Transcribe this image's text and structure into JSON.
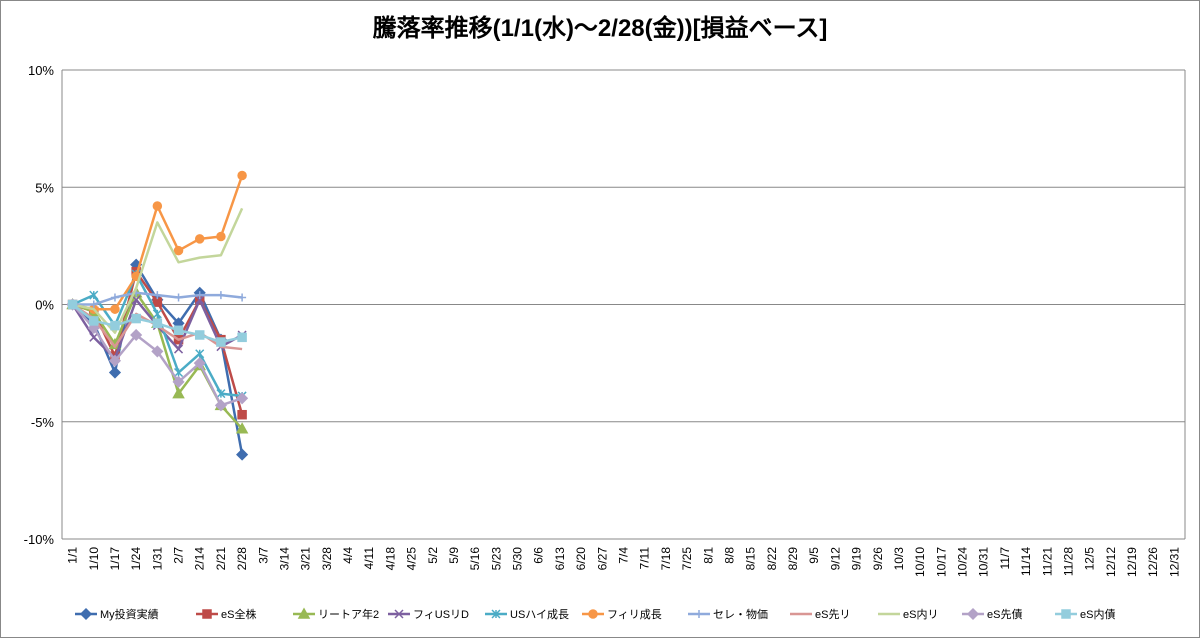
{
  "chart_data": {
    "type": "line",
    "title": "騰落率推移(1/1(水)～2/28(金))[損益ベース]",
    "categories": [
      "1/1",
      "1/10",
      "1/17",
      "1/24",
      "1/31",
      "2/7",
      "2/14",
      "2/21",
      "2/28",
      "3/7",
      "3/14",
      "3/21",
      "3/28",
      "4/4",
      "4/11",
      "4/18",
      "4/25",
      "5/2",
      "5/9",
      "5/16",
      "5/23",
      "5/30",
      "6/6",
      "6/13",
      "6/20",
      "6/27",
      "7/4",
      "7/11",
      "7/18",
      "7/25",
      "8/1",
      "8/8",
      "8/15",
      "8/22",
      "8/29",
      "9/5",
      "9/12",
      "9/19",
      "9/26",
      "10/3",
      "10/10",
      "10/17",
      "10/24",
      "10/31",
      "11/7",
      "11/14",
      "11/21",
      "11/28",
      "12/5",
      "12/12",
      "12/19",
      "12/26",
      "12/31"
    ],
    "ylim": [
      -10,
      10
    ],
    "yticks": [
      {
        "value": -10,
        "label": "-10%"
      },
      {
        "value": -5,
        "label": "-5%"
      },
      {
        "value": 0,
        "label": "0%"
      },
      {
        "value": 5,
        "label": "5%"
      },
      {
        "value": 10,
        "label": "10%"
      }
    ],
    "grid": true,
    "legend": "bottom",
    "series": [
      {
        "name": "My投資実績",
        "color": "#3f6daf",
        "marker": "diamond",
        "values": [
          0,
          -0.8,
          -2.9,
          1.7,
          0.2,
          -0.8,
          0.5,
          -1.5,
          -6.4,
          null,
          null,
          null,
          null,
          null,
          null,
          null,
          null,
          null,
          null,
          null,
          null,
          null,
          null,
          null,
          null,
          null,
          null,
          null,
          null,
          null,
          null,
          null,
          null,
          null,
          null,
          null,
          null,
          null,
          null,
          null,
          null,
          null,
          null,
          null,
          null,
          null,
          null,
          null,
          null,
          null,
          null,
          null,
          null
        ]
      },
      {
        "name": "eS全株",
        "color": "#be4b48",
        "marker": "square",
        "values": [
          0,
          -0.3,
          -2.2,
          1.4,
          0.1,
          -1.5,
          0.2,
          -1.5,
          -4.7,
          null,
          null,
          null,
          null,
          null,
          null,
          null,
          null,
          null,
          null,
          null,
          null,
          null,
          null,
          null,
          null,
          null,
          null,
          null,
          null,
          null,
          null,
          null,
          null,
          null,
          null,
          null,
          null,
          null,
          null,
          null,
          null,
          null,
          null,
          null,
          null,
          null,
          null,
          null,
          null,
          null,
          null,
          null,
          null
        ]
      },
      {
        "name": "リートア年2",
        "color": "#98b954",
        "marker": "triangle",
        "values": [
          0,
          -0.3,
          -1.7,
          0.5,
          -0.8,
          -3.8,
          -2.6,
          -4.3,
          -5.3,
          null,
          null,
          null,
          null,
          null,
          null,
          null,
          null,
          null,
          null,
          null,
          null,
          null,
          null,
          null,
          null,
          null,
          null,
          null,
          null,
          null,
          null,
          null,
          null,
          null,
          null,
          null,
          null,
          null,
          null,
          null,
          null,
          null,
          null,
          null,
          null,
          null,
          null,
          null,
          null,
          null,
          null,
          null,
          null
        ]
      },
      {
        "name": "フィUSリD",
        "color": "#7d60a0",
        "marker": "x",
        "values": [
          0,
          -1.4,
          -2.3,
          0.2,
          -0.9,
          -1.9,
          0.2,
          -1.8,
          -1.3,
          null,
          null,
          null,
          null,
          null,
          null,
          null,
          null,
          null,
          null,
          null,
          null,
          null,
          null,
          null,
          null,
          null,
          null,
          null,
          null,
          null,
          null,
          null,
          null,
          null,
          null,
          null,
          null,
          null,
          null,
          null,
          null,
          null,
          null,
          null,
          null,
          null,
          null,
          null,
          null,
          null,
          null,
          null,
          null
        ]
      },
      {
        "name": "USハイ成長",
        "color": "#4bacc6",
        "marker": "asterisk",
        "values": [
          0,
          0.4,
          -0.9,
          1.3,
          -0.4,
          -2.9,
          -2.1,
          -3.8,
          -3.9,
          null,
          null,
          null,
          null,
          null,
          null,
          null,
          null,
          null,
          null,
          null,
          null,
          null,
          null,
          null,
          null,
          null,
          null,
          null,
          null,
          null,
          null,
          null,
          null,
          null,
          null,
          null,
          null,
          null,
          null,
          null,
          null,
          null,
          null,
          null,
          null,
          null,
          null,
          null,
          null,
          null,
          null,
          null,
          null
        ]
      },
      {
        "name": "フィリ成長",
        "color": "#f79646",
        "marker": "circle",
        "values": [
          0,
          -0.2,
          -0.2,
          1.2,
          4.2,
          2.3,
          2.8,
          2.9,
          5.5,
          null,
          null,
          null,
          null,
          null,
          null,
          null,
          null,
          null,
          null,
          null,
          null,
          null,
          null,
          null,
          null,
          null,
          null,
          null,
          null,
          null,
          null,
          null,
          null,
          null,
          null,
          null,
          null,
          null,
          null,
          null,
          null,
          null,
          null,
          null,
          null,
          null,
          null,
          null,
          null,
          null,
          null,
          null,
          null
        ]
      },
      {
        "name": "セレ・物価",
        "color": "#8faadc",
        "marker": "plus",
        "values": [
          0,
          0.0,
          0.3,
          0.5,
          0.4,
          0.3,
          0.4,
          0.4,
          0.3,
          null,
          null,
          null,
          null,
          null,
          null,
          null,
          null,
          null,
          null,
          null,
          null,
          null,
          null,
          null,
          null,
          null,
          null,
          null,
          null,
          null,
          null,
          null,
          null,
          null,
          null,
          null,
          null,
          null,
          null,
          null,
          null,
          null,
          null,
          null,
          null,
          null,
          null,
          null,
          null,
          null,
          null,
          null,
          null
        ]
      },
      {
        "name": "eS先リ",
        "color": "#d99694",
        "marker": "none",
        "values": [
          0,
          -0.6,
          -1.8,
          -0.4,
          -0.9,
          -1.5,
          -1.2,
          -1.8,
          -1.9,
          null,
          null,
          null,
          null,
          null,
          null,
          null,
          null,
          null,
          null,
          null,
          null,
          null,
          null,
          null,
          null,
          null,
          null,
          null,
          null,
          null,
          null,
          null,
          null,
          null,
          null,
          null,
          null,
          null,
          null,
          null,
          null,
          null,
          null,
          null,
          null,
          null,
          null,
          null,
          null,
          null,
          null,
          null,
          null
        ]
      },
      {
        "name": "eS内リ",
        "color": "#c3d69b",
        "marker": "none",
        "values": [
          0,
          -0.2,
          -1.2,
          0.7,
          3.5,
          1.8,
          2.0,
          2.1,
          4.1,
          null,
          null,
          null,
          null,
          null,
          null,
          null,
          null,
          null,
          null,
          null,
          null,
          null,
          null,
          null,
          null,
          null,
          null,
          null,
          null,
          null,
          null,
          null,
          null,
          null,
          null,
          null,
          null,
          null,
          null,
          null,
          null,
          null,
          null,
          null,
          null,
          null,
          null,
          null,
          null,
          null,
          null,
          null,
          null
        ]
      },
      {
        "name": "eS先債",
        "color": "#b3a2c7",
        "marker": "diamond",
        "values": [
          0,
          -1.0,
          -2.4,
          -1.3,
          -2.0,
          -3.3,
          -2.5,
          -4.3,
          -4.0,
          null,
          null,
          null,
          null,
          null,
          null,
          null,
          null,
          null,
          null,
          null,
          null,
          null,
          null,
          null,
          null,
          null,
          null,
          null,
          null,
          null,
          null,
          null,
          null,
          null,
          null,
          null,
          null,
          null,
          null,
          null,
          null,
          null,
          null,
          null,
          null,
          null,
          null,
          null,
          null,
          null,
          null,
          null,
          null
        ]
      },
      {
        "name": "eS内債",
        "color": "#93cddd",
        "marker": "square",
        "values": [
          0,
          -0.7,
          -0.9,
          -0.6,
          -0.8,
          -1.1,
          -1.3,
          -1.6,
          -1.4,
          null,
          null,
          null,
          null,
          null,
          null,
          null,
          null,
          null,
          null,
          null,
          null,
          null,
          null,
          null,
          null,
          null,
          null,
          null,
          null,
          null,
          null,
          null,
          null,
          null,
          null,
          null,
          null,
          null,
          null,
          null,
          null,
          null,
          null,
          null,
          null,
          null,
          null,
          null,
          null,
          null,
          null,
          null,
          null
        ]
      }
    ]
  }
}
